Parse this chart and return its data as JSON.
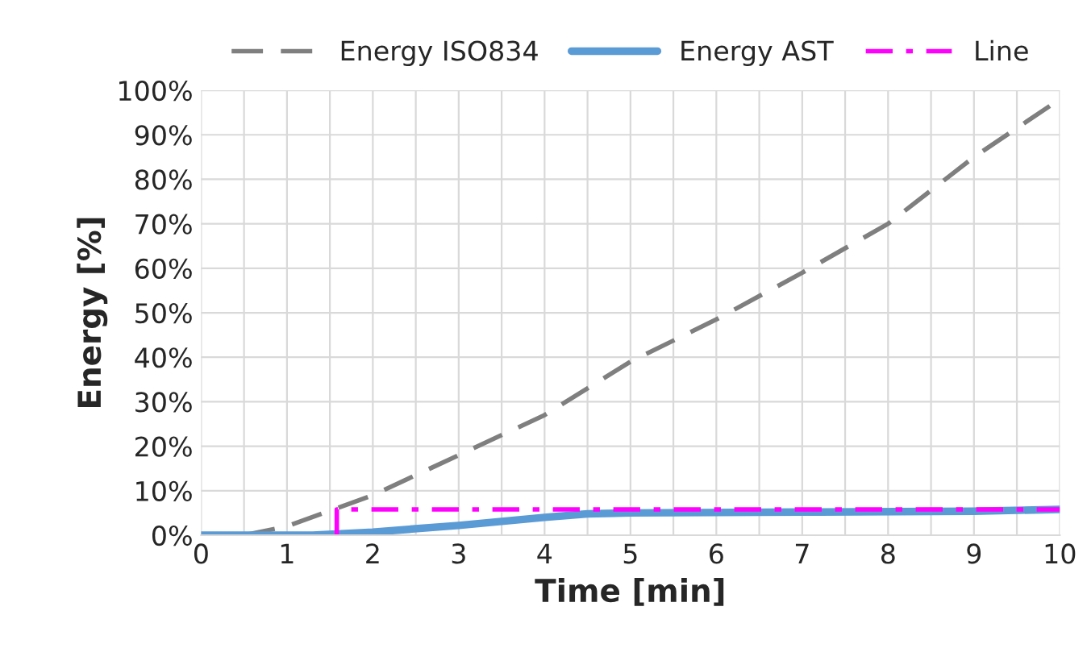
{
  "chart_data": {
    "type": "line",
    "xlabel": "Time [min]",
    "ylabel": "Energy [%]",
    "xlim": [
      0,
      10
    ],
    "ylim": [
      0,
      100
    ],
    "xticks": [
      0,
      {
        "value": 0.5,
        "label": null
      },
      1,
      {
        "value": 1.5,
        "label": null
      },
      2,
      {
        "value": 2.5,
        "label": null
      },
      3,
      {
        "value": 3.5,
        "label": null
      },
      4,
      {
        "value": 4.5,
        "label": null
      },
      5,
      {
        "value": 5.5,
        "label": null
      },
      6,
      {
        "value": 6.5,
        "label": null
      },
      7,
      {
        "value": 7.5,
        "label": null
      },
      8,
      {
        "value": 8.5,
        "label": null
      },
      9,
      {
        "value": 9.5,
        "label": null
      },
      10
    ],
    "yticks": [
      {
        "value": 0,
        "label": "0%"
      },
      {
        "value": 10,
        "label": "10%"
      },
      {
        "value": 20,
        "label": "20%"
      },
      {
        "value": 30,
        "label": "30%"
      },
      {
        "value": 40,
        "label": "40%"
      },
      {
        "value": 50,
        "label": "50%"
      },
      {
        "value": 60,
        "label": "60%"
      },
      {
        "value": 70,
        "label": "70%"
      },
      {
        "value": 80,
        "label": "80%"
      },
      {
        "value": 90,
        "label": "90%"
      },
      {
        "value": 100,
        "label": "100%"
      }
    ],
    "grid": true,
    "legend": "top",
    "marker": "none",
    "series": [
      {
        "name": "Energy ISO834",
        "color": "#7f7f7f",
        "line_style": "dashed",
        "x": [
          0.5,
          1,
          2,
          3,
          4,
          5,
          6,
          7,
          8,
          9,
          10
        ],
        "values": [
          0,
          2,
          9,
          18,
          27,
          39,
          48.5,
          59,
          70,
          85,
          98
        ]
      },
      {
        "name": "Energy AST",
        "color": "#5b9bd5",
        "line_style": "solid",
        "x": [
          0,
          1.3,
          2,
          3,
          4,
          4.5,
          5,
          7,
          9,
          10
        ],
        "values": [
          0,
          0,
          0.7,
          2.2,
          4,
          4.8,
          5,
          5.2,
          5.4,
          5.8
        ]
      },
      {
        "name": "Line",
        "color": "#ff00ff",
        "line_style": "dashdot",
        "x": [
          1.58,
          1.58,
          10
        ],
        "values": [
          0,
          5.8,
          5.8
        ]
      }
    ]
  }
}
